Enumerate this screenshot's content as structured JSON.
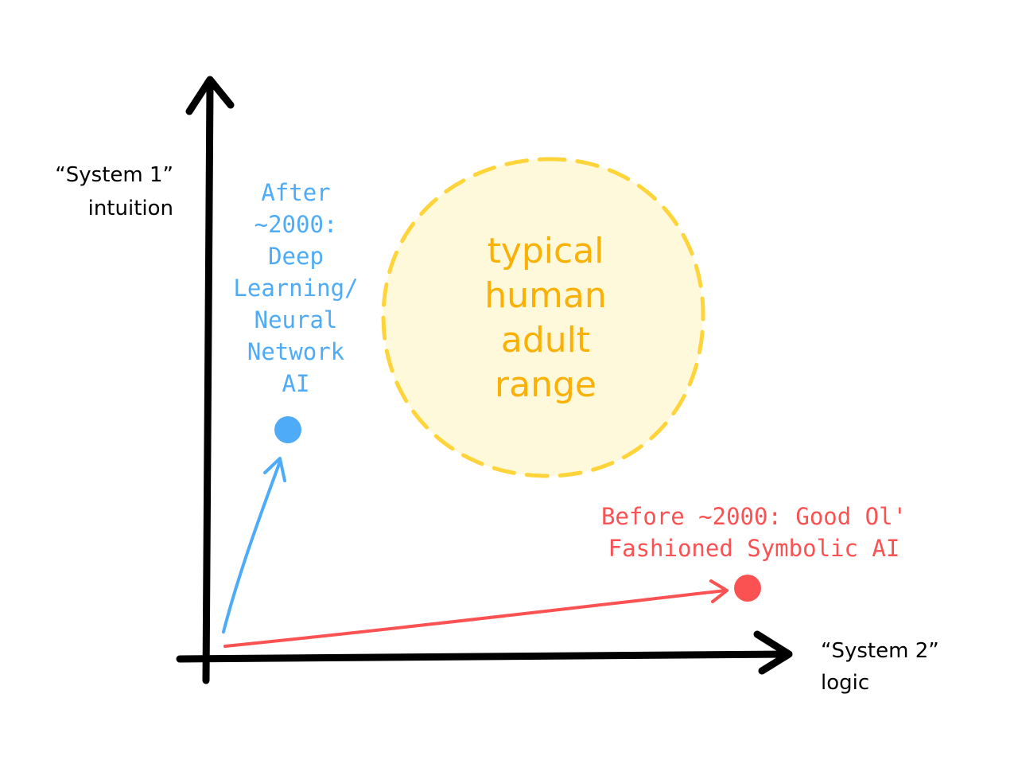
{
  "axes": {
    "y_label_line1": "“System 1”",
    "y_label_line2": "intuition",
    "x_label_line1": "“System 2”",
    "x_label_line2": "logic"
  },
  "human_range": {
    "lines": [
      "typical",
      "human",
      "adult",
      "range"
    ],
    "stroke_color": "#ffd43b",
    "fill_color": "#fff9db",
    "text_color": "#fab005"
  },
  "deep_learning": {
    "lines": [
      "After",
      "~2000:",
      "Deep",
      "Learning/",
      "Neural",
      "Network",
      "AI"
    ],
    "color": "#4dabf7"
  },
  "symbolic_ai": {
    "lines": [
      "Before ~2000: Good Ol'",
      "Fashioned Symbolic AI"
    ],
    "color": "#fa5252"
  },
  "colors": {
    "axis": "#000000",
    "label": "#000000"
  }
}
